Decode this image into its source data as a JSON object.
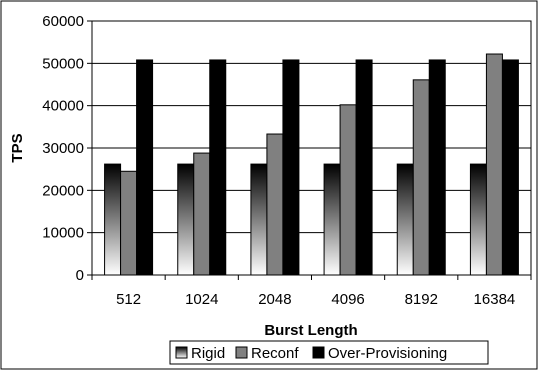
{
  "chart_data": {
    "type": "bar",
    "title": "",
    "xlabel": "Burst Length",
    "ylabel": "TPS",
    "categories": [
      "512",
      "1024",
      "2048",
      "4096",
      "8192",
      "16384"
    ],
    "ylim": [
      0,
      60000
    ],
    "yticks": [
      0,
      10000,
      20000,
      30000,
      40000,
      50000,
      60000
    ],
    "grid": "horizontal",
    "legend_position": "bottom",
    "series": [
      {
        "name": "Rigid",
        "values": [
          26200,
          26200,
          26200,
          26200,
          26200,
          26200
        ],
        "fill": "gradient-gray"
      },
      {
        "name": "Reconf",
        "values": [
          24500,
          28800,
          33300,
          40200,
          46100,
          52200
        ],
        "color": "#808080"
      },
      {
        "name": "Over-Provisioning",
        "values": [
          50800,
          50800,
          50800,
          50800,
          50800,
          50800
        ],
        "color": "#000000"
      }
    ]
  }
}
